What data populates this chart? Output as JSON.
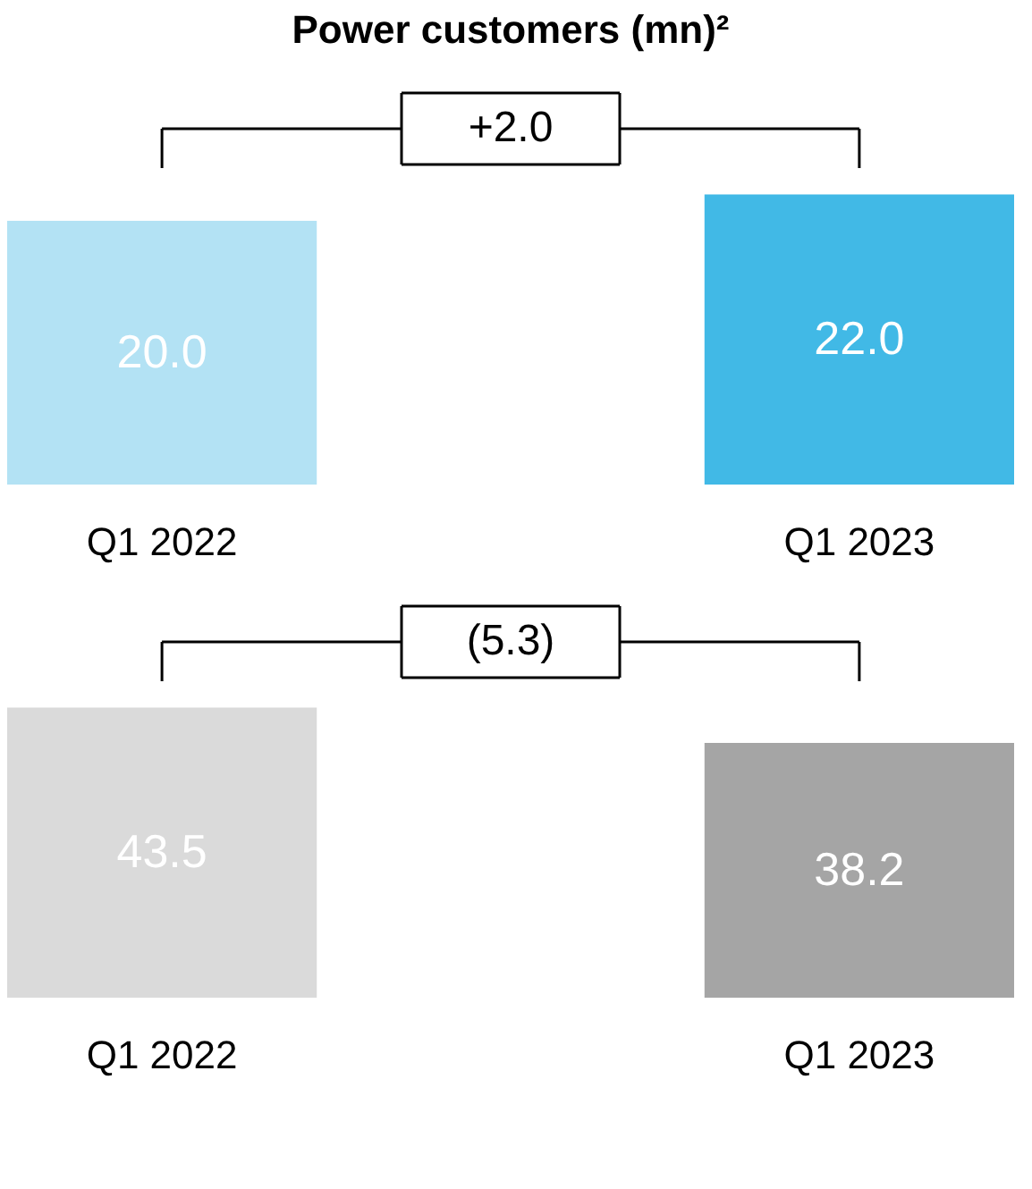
{
  "chart_data": [
    {
      "type": "bar",
      "title": "Power customers (mn)²",
      "categories": [
        "Q1 2022",
        "Q1 2023"
      ],
      "values": [
        20.0,
        22.0
      ],
      "colors": [
        "#b3e2f4",
        "#41b9e6"
      ],
      "value_labels": [
        "20.0",
        "22.0"
      ],
      "annotations": [
        "+2.0"
      ]
    },
    {
      "type": "bar",
      "categories": [
        "Q1 2022",
        "Q1 2023"
      ],
      "values": [
        43.5,
        38.2
      ],
      "colors": [
        "#dadada",
        "#a5a5a5"
      ],
      "value_labels": [
        "43.5",
        "38.2"
      ],
      "annotations": [
        "(5.3)"
      ]
    }
  ]
}
